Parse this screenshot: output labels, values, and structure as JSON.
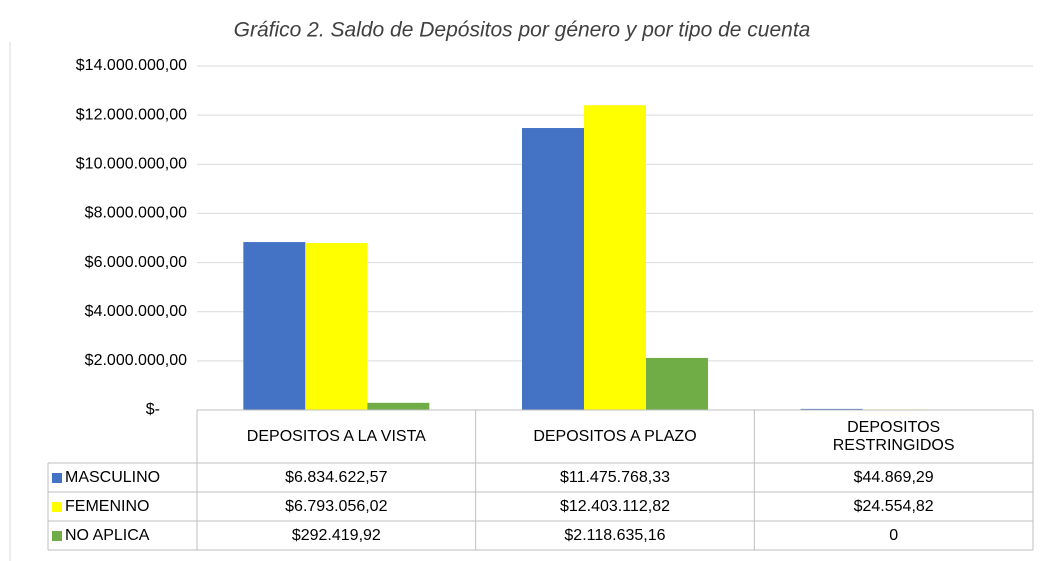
{
  "chart_data": {
    "type": "bar",
    "title": "Gráfico 2. Saldo de Depósitos por género y por tipo de cuenta",
    "categories": [
      "DEPOSITOS A LA VISTA",
      "DEPOSITOS A PLAZO",
      "DEPOSITOS RESTRINGIDOS"
    ],
    "series": [
      {
        "name": "MASCULINO",
        "color": "#4472c4",
        "values": [
          6834622.57,
          11475768.33,
          44869.29
        ],
        "value_labels": [
          "$6.834.622,57",
          "$11.475.768,33",
          "$44.869,29"
        ]
      },
      {
        "name": "FEMENINO",
        "color": "#ffff00",
        "values": [
          6793056.02,
          12403112.82,
          24554.82
        ],
        "value_labels": [
          "$6.793.056,02",
          "$12.403.112,82",
          "$24.554,82"
        ]
      },
      {
        "name": "NO APLICA",
        "color": "#70ad47",
        "values": [
          292419.92,
          2118635.16,
          0
        ],
        "value_labels": [
          "$292.419,92",
          "$2.118.635,16",
          "0"
        ]
      }
    ],
    "ylim": [
      0,
      14000000
    ],
    "yticks": [
      {
        "value": 0,
        "label": "$-"
      },
      {
        "value": 2000000,
        "label": "$2.000.000,00"
      },
      {
        "value": 4000000,
        "label": "$4.000.000,00"
      },
      {
        "value": 6000000,
        "label": "$6.000.000,00"
      },
      {
        "value": 8000000,
        "label": "$8.000.000,00"
      },
      {
        "value": 10000000,
        "label": "$10.000.000,00"
      },
      {
        "value": 12000000,
        "label": "$12.000.000,00"
      },
      {
        "value": 14000000,
        "label": "$14.000.000,00"
      }
    ],
    "grid": true
  }
}
